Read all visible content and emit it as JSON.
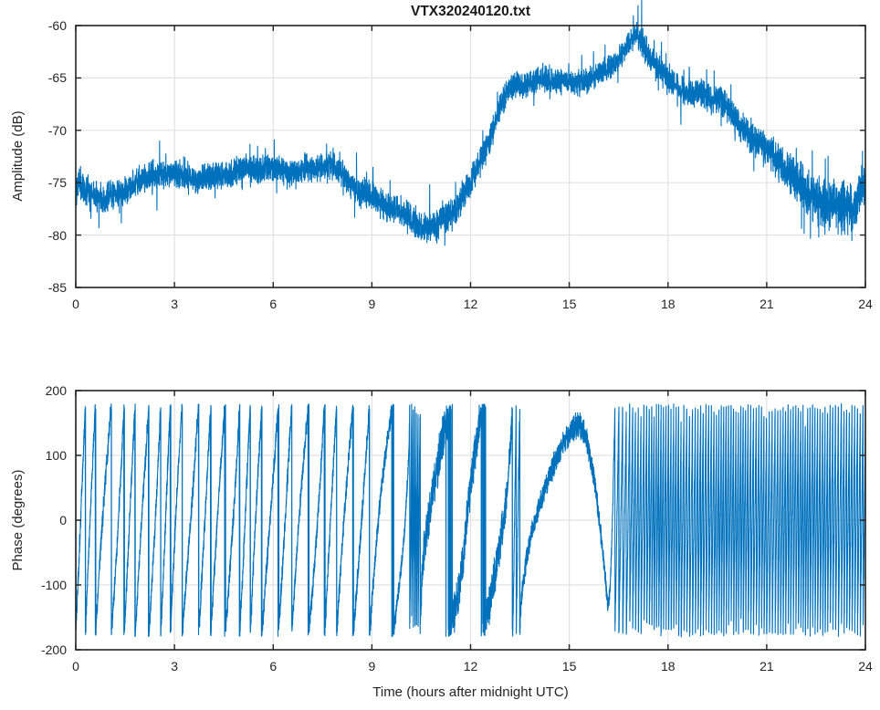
{
  "figure": {
    "bg": "#ffffff",
    "trace_color": "#0072BD",
    "grid_color": "#e2e2e2",
    "axis_color": "#222222",
    "text_color": "#262626"
  },
  "chart_data": [
    {
      "type": "line",
      "title": "VTX320240120.txt",
      "xlabel": "",
      "ylabel": "Amplitude (dB)",
      "xlim": [
        0,
        24
      ],
      "ylim": [
        -85,
        -60
      ],
      "xticks": [
        0,
        3,
        6,
        9,
        12,
        15,
        18,
        21,
        24
      ],
      "yticks": [
        -85,
        -80,
        -75,
        -70,
        -65,
        -60
      ],
      "grid": true,
      "legend": null,
      "series": [
        {
          "name": "amplitude",
          "signal": "noisy-line",
          "samples": 6500,
          "seed": 42,
          "center_keypoints": [
            [
              0,
              -75.2
            ],
            [
              0.35,
              -75.9
            ],
            [
              0.8,
              -76.9
            ],
            [
              1.25,
              -76.1
            ],
            [
              1.7,
              -74.9
            ],
            [
              2.3,
              -74.3
            ],
            [
              3.0,
              -74.4
            ],
            [
              3.7,
              -74.6
            ],
            [
              4.3,
              -74.2
            ],
            [
              5.0,
              -74.0
            ],
            [
              5.7,
              -73.7
            ],
            [
              6.3,
              -73.5
            ],
            [
              6.8,
              -73.7
            ],
            [
              7.25,
              -73.8
            ],
            [
              7.65,
              -73.4
            ],
            [
              8.1,
              -74.3
            ],
            [
              8.6,
              -75.4
            ],
            [
              9.1,
              -76.4
            ],
            [
              9.6,
              -77.6
            ],
            [
              10.1,
              -78.4
            ],
            [
              10.55,
              -79.1
            ],
            [
              10.9,
              -79.2
            ],
            [
              11.3,
              -78.2
            ],
            [
              11.7,
              -76.7
            ],
            [
              12.1,
              -74.6
            ],
            [
              12.5,
              -71.6
            ],
            [
              12.85,
              -68.3
            ],
            [
              13.15,
              -66.1
            ],
            [
              13.4,
              -65.3
            ],
            [
              13.85,
              -65.6
            ],
            [
              14.35,
              -65.2
            ],
            [
              14.85,
              -65.6
            ],
            [
              15.25,
              -65.4
            ],
            [
              15.7,
              -64.8
            ],
            [
              16.1,
              -64.2
            ],
            [
              16.5,
              -63.2
            ],
            [
              16.85,
              -61.9
            ],
            [
              17.05,
              -61.2
            ],
            [
              17.3,
              -62.2
            ],
            [
              17.6,
              -63.5
            ],
            [
              17.9,
              -64.6
            ],
            [
              18.2,
              -65.4
            ],
            [
              18.6,
              -66.3
            ],
            [
              19.0,
              -66.8
            ],
            [
              19.35,
              -67.2
            ],
            [
              19.6,
              -66.9
            ],
            [
              19.9,
              -68.3
            ],
            [
              20.25,
              -69.5
            ],
            [
              20.7,
              -70.8
            ],
            [
              21.1,
              -72.3
            ],
            [
              21.5,
              -73.8
            ],
            [
              21.95,
              -75.1
            ],
            [
              22.4,
              -76.2
            ],
            [
              22.85,
              -76.9
            ],
            [
              23.25,
              -77.4
            ],
            [
              23.65,
              -77.2
            ],
            [
              24,
              -75.4
            ]
          ],
          "noise_halfwidth_keypoints": [
            [
              0,
              1.3
            ],
            [
              2,
              1.15
            ],
            [
              6,
              1.1
            ],
            [
              9,
              1.15
            ],
            [
              11,
              1.3
            ],
            [
              12.5,
              1.2
            ],
            [
              13.5,
              1.05
            ],
            [
              16,
              1.05
            ],
            [
              18,
              1.15
            ],
            [
              20,
              1.25
            ],
            [
              21.3,
              1.5
            ],
            [
              22.3,
              1.9
            ],
            [
              23.0,
              2.1
            ],
            [
              24,
              2.3
            ]
          ],
          "wander_terms": [
            [
              0.22,
              2.7,
              0
            ],
            [
              0.15,
              6.3,
              1.3
            ]
          ],
          "spike_probability": 0.035,
          "spike_scale": 2.4
        }
      ]
    },
    {
      "type": "line",
      "title": "",
      "xlabel": "Time (hours after midnight UTC)",
      "ylabel": "Phase (degrees)",
      "xlim": [
        0,
        24
      ],
      "ylim": [
        -200,
        200
      ],
      "xticks": [
        0,
        3,
        6,
        9,
        12,
        15,
        18,
        21,
        24
      ],
      "yticks": [
        -200,
        -100,
        0,
        100,
        200
      ],
      "grid": true,
      "legend": null,
      "series": [
        {
          "name": "phase",
          "signal": "wrapped-phase",
          "samples": 9500,
          "seed": 7,
          "phase_start_deg": 178,
          "wrap_range_deg": [
            -180,
            180
          ],
          "wrap_rate_keypoints_wraps_per_hr": [
            [
              0,
              -2.8
            ],
            [
              3,
              -2.6
            ],
            [
              5,
              -2.45
            ],
            [
              7,
              -2.25
            ],
            [
              8.5,
              -2.0
            ],
            [
              9.3,
              -1.6
            ],
            [
              9.9,
              -1.3
            ],
            [
              10.12,
              -3
            ],
            [
              10.18,
              -20
            ],
            [
              10.42,
              -20
            ],
            [
              10.5,
              -3
            ],
            [
              10.6,
              -1.0
            ],
            [
              11.0,
              -0.75
            ],
            [
              11.6,
              -0.7
            ],
            [
              11.85,
              -1.5
            ],
            [
              12.0,
              -1.1
            ],
            [
              12.4,
              -0.75
            ],
            [
              13.0,
              -0.85
            ],
            [
              13.25,
              -2.5
            ],
            [
              13.33,
              -10
            ],
            [
              13.45,
              -10
            ],
            [
              13.55,
              -1.2
            ],
            [
              13.9,
              -0.5
            ],
            [
              14.5,
              -0.36
            ],
            [
              15.0,
              -0.22
            ],
            [
              15.3,
              0
            ],
            [
              15.55,
              0.6
            ],
            [
              15.9,
              1.2
            ],
            [
              16.15,
              1.6
            ],
            [
              16.22,
              -2
            ],
            [
              16.4,
              -8
            ],
            [
              16.8,
              -11.5
            ],
            [
              17.5,
              -13
            ],
            [
              18.3,
              -12
            ],
            [
              19.2,
              -13.5
            ],
            [
              20.2,
              -12.3
            ],
            [
              21.2,
              -13.3
            ],
            [
              22.2,
              -12.5
            ],
            [
              23.2,
              -13.2
            ],
            [
              24,
              -12.3
            ]
          ],
          "noise_halfwidth_keypoints": [
            [
              0,
              13
            ],
            [
              9.5,
              13
            ],
            [
              10.1,
              9
            ],
            [
              10.6,
              26
            ],
            [
              11.3,
              30
            ],
            [
              11.9,
              24
            ],
            [
              12.1,
              26
            ],
            [
              12.9,
              26
            ],
            [
              13.3,
              16
            ],
            [
              13.6,
              13
            ],
            [
              14.6,
              15
            ],
            [
              15.3,
              17
            ],
            [
              16.0,
              12
            ],
            [
              16.3,
              11
            ],
            [
              17,
              11
            ],
            [
              24,
              11
            ]
          ],
          "rate_modulation": [
            {
              "t_min": 0,
              "t_max": 9.9,
              "terms": [
                [
                  0.22,
                  5.1,
                  0
                ],
                [
                  0.12,
                  2.3,
                  2
                ]
              ]
            },
            {
              "t_min": 16.3,
              "t_max": 24,
              "terms": [
                [
                  0.09,
                  2.9,
                  0
                ],
                [
                  0.05,
                  9.7,
                  0
                ]
              ]
            }
          ]
        }
      ]
    }
  ]
}
